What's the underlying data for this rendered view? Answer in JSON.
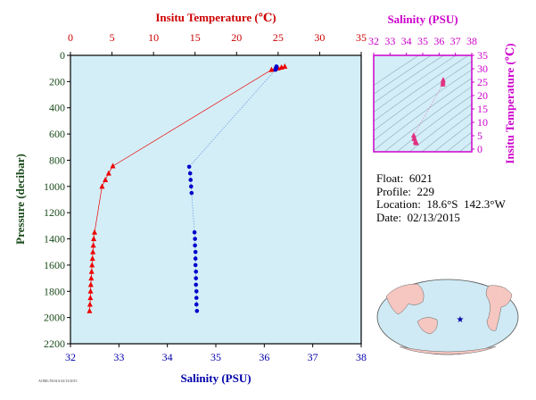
{
  "main_chart": {
    "temp_axis_title": "Insitu Temperature (℃)",
    "sal_axis_title": "Salinity (PSU)",
    "pressure_axis_title": "Pressure (decibar)",
    "temp_ticks": [
      "0",
      "5",
      "10",
      "15",
      "20",
      "25",
      "30",
      "35"
    ],
    "sal_ticks": [
      "32",
      "33",
      "34",
      "35",
      "36",
      "37",
      "38"
    ],
    "pressure_ticks": [
      "0",
      "200",
      "400",
      "600",
      "800",
      "1000",
      "1200",
      "1400",
      "1600",
      "1800",
      "2000",
      "2200"
    ]
  },
  "ts_inset": {
    "sal_axis_title": "Salinity (PSU)",
    "temp_axis_title": "Insitu Temperature (℃)",
    "sal_ticks": [
      "32",
      "33",
      "34",
      "35",
      "36",
      "37",
      "38"
    ],
    "temp_ticks": [
      "0",
      "5",
      "10",
      "15",
      "20",
      "25",
      "30",
      "35"
    ]
  },
  "info": {
    "float": "Float:  6021",
    "profile": "Profile:  229",
    "location": "Location:  18.6°S  142.3°W",
    "date": "Date:  02/13/2015"
  },
  "footer_text": "AOML/NOAA 02/13/2015",
  "colors": {
    "temperature": "#ee0000",
    "salinity": "#0000cc",
    "plot_bg": "#d3eef7",
    "inset_frame": "#cc00cc",
    "land": "#f6c6c0",
    "ocean": "#cfeaf4"
  },
  "chart_data": [
    {
      "type": "line",
      "title": "",
      "x_axes": {
        "temperature": {
          "label": "Insitu Temperature (℃)",
          "range": [
            0,
            35
          ]
        },
        "salinity": {
          "label": "Salinity (PSU)",
          "range": [
            32,
            38
          ]
        }
      },
      "y_axis": {
        "label": "Pressure (decibar)",
        "range": [
          0,
          2200
        ],
        "inverted": true
      },
      "series": [
        {
          "name": "Insitu Temperature",
          "pressure": [
            85,
            92,
            98,
            104,
            110,
            845,
            900,
            950,
            1000,
            1350,
            1400,
            1450,
            1500,
            1550,
            1600,
            1650,
            1700,
            1750,
            1800,
            1850,
            1900,
            1950
          ],
          "values": [
            25.8,
            25.4,
            25.0,
            24.6,
            24.2,
            5.1,
            4.6,
            4.2,
            3.8,
            2.9,
            2.8,
            2.75,
            2.7,
            2.65,
            2.6,
            2.55,
            2.5,
            2.45,
            2.42,
            2.4,
            2.35,
            2.3
          ]
        },
        {
          "name": "Salinity",
          "pressure": [
            85,
            92,
            98,
            104,
            110,
            850,
            900,
            950,
            1000,
            1050,
            1350,
            1400,
            1450,
            1500,
            1550,
            1600,
            1650,
            1700,
            1750,
            1800,
            1850,
            1900,
            1950
          ],
          "values": [
            36.25,
            36.25,
            36.24,
            36.24,
            36.23,
            34.45,
            34.47,
            34.48,
            34.49,
            34.5,
            34.56,
            34.57,
            34.57,
            34.58,
            34.58,
            34.58,
            34.59,
            34.59,
            34.59,
            34.6,
            34.6,
            34.6,
            34.61
          ]
        }
      ]
    },
    {
      "type": "scatter",
      "title": "",
      "x_axis": {
        "label": "Salinity (PSU)",
        "range": [
          32,
          38
        ]
      },
      "y_axis": {
        "label": "Insitu Temperature (℃)",
        "range": [
          -1,
          35
        ]
      },
      "points": [
        {
          "x": 36.25,
          "y": 25.8
        },
        {
          "x": 36.24,
          "y": 25.0
        },
        {
          "x": 36.23,
          "y": 24.2
        },
        {
          "x": 34.45,
          "y": 5.1
        },
        {
          "x": 34.48,
          "y": 4.2
        },
        {
          "x": 34.5,
          "y": 3.8
        },
        {
          "x": 34.56,
          "y": 2.9
        },
        {
          "x": 34.58,
          "y": 2.6
        },
        {
          "x": 34.6,
          "y": 2.4
        },
        {
          "x": 34.61,
          "y": 2.3
        }
      ]
    }
  ]
}
